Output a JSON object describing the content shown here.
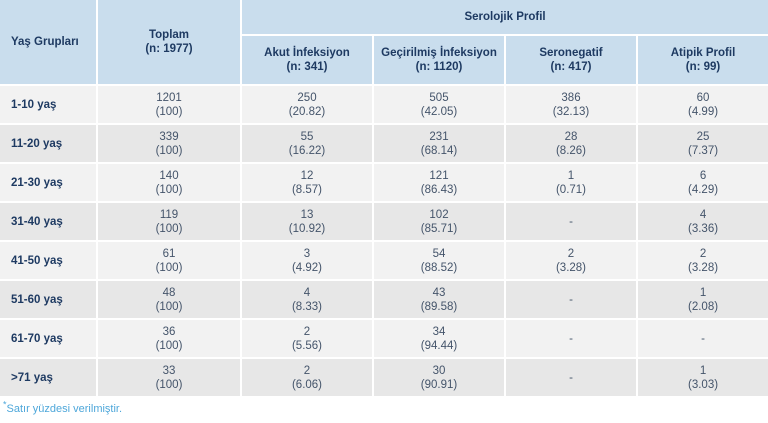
{
  "colors": {
    "header_bg": "#c9dded",
    "header_text": "#1e3a62",
    "row_light": "#f2f2f2",
    "row_dark": "#e7e7e7",
    "cell_text": "#44546a",
    "footnote_text": "#4ea7da"
  },
  "table": {
    "header": {
      "age_groups": "Yaş Grupları",
      "total_label": "Toplam",
      "total_n": "(n: 1977)",
      "group_label": "Serolojik Profil",
      "sub": [
        {
          "label": "Akut İnfeksiyon",
          "n": "(n: 341)"
        },
        {
          "label": "Geçirilmiş İnfeksiyon",
          "n": "(n: 1120)"
        },
        {
          "label": "Seronegatif",
          "n": "(n: 417)"
        },
        {
          "label": "Atipik Profil",
          "n": "(n: 99)"
        }
      ]
    },
    "rows": [
      {
        "label": "1-10 yaş",
        "cells": [
          [
            "1201",
            "(100)"
          ],
          [
            "250",
            "(20.82)"
          ],
          [
            "505",
            "(42.05)"
          ],
          [
            "386",
            "(32.13)"
          ],
          [
            "60",
            "(4.99)"
          ]
        ]
      },
      {
        "label": "11-20 yaş",
        "cells": [
          [
            "339",
            "(100)"
          ],
          [
            "55",
            "(16.22)"
          ],
          [
            "231",
            "(68.14)"
          ],
          [
            "28",
            "(8.26)"
          ],
          [
            "25",
            "(7.37)"
          ]
        ]
      },
      {
        "label": "21-30 yaş",
        "cells": [
          [
            "140",
            "(100)"
          ],
          [
            "12",
            "(8.57)"
          ],
          [
            "121",
            "(86.43)"
          ],
          [
            "1",
            "(0.71)"
          ],
          [
            "6",
            "(4.29)"
          ]
        ]
      },
      {
        "label": "31-40 yaş",
        "cells": [
          [
            "119",
            "(100)"
          ],
          [
            "13",
            "(10.92)"
          ],
          [
            "102",
            "(85.71)"
          ],
          [
            "-",
            ""
          ],
          [
            "4",
            "(3.36)"
          ]
        ]
      },
      {
        "label": "41-50 yaş",
        "cells": [
          [
            "61",
            "(100)"
          ],
          [
            "3",
            "(4.92)"
          ],
          [
            "54",
            "(88.52)"
          ],
          [
            "2",
            "(3.28)"
          ],
          [
            "2",
            "(3.28)"
          ]
        ]
      },
      {
        "label": "51-60 yaş",
        "cells": [
          [
            "48",
            "(100)"
          ],
          [
            "4",
            "(8.33)"
          ],
          [
            "43",
            "(89.58)"
          ],
          [
            "-",
            ""
          ],
          [
            "1",
            "(2.08)"
          ]
        ]
      },
      {
        "label": "61-70 yaş",
        "cells": [
          [
            "36",
            "(100)"
          ],
          [
            "2",
            "(5.56)"
          ],
          [
            "34",
            "(94.44)"
          ],
          [
            "-",
            ""
          ],
          [
            "-",
            ""
          ]
        ]
      },
      {
        "label": ">71 yaş",
        "cells": [
          [
            "33",
            "(100)"
          ],
          [
            "2",
            "(6.06)"
          ],
          [
            "30",
            "(90.91)"
          ],
          [
            "-",
            ""
          ],
          [
            "1",
            "(3.03)"
          ]
        ]
      }
    ]
  },
  "footnote": {
    "star": "*",
    "text": "Satır yüzdesi verilmiştir."
  },
  "chart_data": {
    "type": "table",
    "title": "Serolojik Profil",
    "column_group": {
      "label": "Serolojik Profil",
      "spans_columns": [
        "Akut İnfeksiyon (n: 341)",
        "Geçirilmiş İnfeksiyon (n: 1120)",
        "Seronegatif (n: 417)",
        "Atipik Profil (n: 99)"
      ]
    },
    "columns": [
      "Yaş Grupları",
      "Toplam (n: 1977)",
      "Akut İnfeksiyon (n: 341)",
      "Geçirilmiş İnfeksiyon (n: 1120)",
      "Seronegatif (n: 417)",
      "Atipik Profil (n: 99)"
    ],
    "rows": [
      [
        "1-10 yaş",
        "1201 (100)",
        "250 (20.82)",
        "505 (42.05)",
        "386 (32.13)",
        "60 (4.99)"
      ],
      [
        "11-20 yaş",
        "339 (100)",
        "55 (16.22)",
        "231 (68.14)",
        "28 (8.26)",
        "25 (7.37)"
      ],
      [
        "21-30 yaş",
        "140 (100)",
        "12 (8.57)",
        "121 (86.43)",
        "1 (0.71)",
        "6 (4.29)"
      ],
      [
        "31-40 yaş",
        "119 (100)",
        "13 (10.92)",
        "102 (85.71)",
        "-",
        "4 (3.36)"
      ],
      [
        "41-50 yaş",
        "61 (100)",
        "3 (4.92)",
        "54 (88.52)",
        "2 (3.28)",
        "2 (3.28)"
      ],
      [
        "51-60 yaş",
        "48 (100)",
        "4 (8.33)",
        "43 (89.58)",
        "-",
        "1 (2.08)"
      ],
      [
        "61-70 yaş",
        "36 (100)",
        "2 (5.56)",
        "34 (94.44)",
        "-",
        "-"
      ],
      [
        ">71 yaş",
        "33 (100)",
        "2 (6.06)",
        "30 (90.91)",
        "-",
        "1 (3.03)"
      ]
    ],
    "annotations": [
      "*Satır yüzdesi verilmiştir."
    ]
  }
}
